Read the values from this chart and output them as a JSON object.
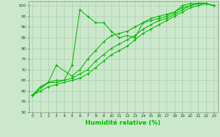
{
  "title": "",
  "xlabel": "Humidité relative (%)",
  "ylabel": "",
  "background_color": "#cce8cc",
  "grid_color": "#aaccaa",
  "line_color": "#00bb00",
  "xlim": [
    -0.5,
    23.5
  ],
  "ylim": [
    50,
    102
  ],
  "yticks": [
    50,
    55,
    60,
    65,
    70,
    75,
    80,
    85,
    90,
    95,
    100
  ],
  "xticks": [
    0,
    1,
    2,
    3,
    4,
    5,
    6,
    7,
    8,
    9,
    10,
    11,
    12,
    13,
    14,
    15,
    16,
    17,
    18,
    19,
    20,
    21,
    22,
    23
  ],
  "series": [
    {
      "x": [
        0,
        1,
        2,
        3,
        4,
        5,
        6,
        7,
        8,
        9,
        10,
        11,
        12,
        13,
        14,
        15,
        16,
        17,
        18,
        19,
        20,
        21,
        22,
        23
      ],
      "y": [
        58,
        62,
        64,
        65,
        65,
        72,
        98,
        95,
        92,
        92,
        88,
        85,
        86,
        85,
        92,
        93,
        94,
        95,
        97,
        100,
        101,
        101,
        101,
        100
      ]
    },
    {
      "x": [
        0,
        2,
        3,
        5,
        6,
        7,
        8,
        9,
        10,
        11,
        12,
        13,
        14,
        15,
        16,
        17,
        18,
        19,
        20,
        21,
        22,
        23
      ],
      "y": [
        58,
        64,
        72,
        67,
        70,
        75,
        79,
        83,
        86,
        87,
        88,
        90,
        92,
        94,
        95,
        96,
        97,
        99,
        100,
        101,
        101,
        100
      ]
    },
    {
      "x": [
        0,
        1,
        2,
        3,
        4,
        5,
        6,
        7,
        8,
        9,
        10,
        11,
        12,
        13,
        14,
        15,
        16,
        17,
        18,
        19,
        20,
        21,
        22,
        23
      ],
      "y": [
        58,
        62,
        64,
        64,
        65,
        66,
        68,
        70,
        74,
        77,
        80,
        82,
        84,
        86,
        89,
        91,
        93,
        94,
        96,
        98,
        100,
        101,
        101,
        100
      ]
    },
    {
      "x": [
        0,
        1,
        2,
        3,
        4,
        5,
        6,
        7,
        8,
        9,
        10,
        11,
        12,
        13,
        14,
        15,
        16,
        17,
        18,
        19,
        20,
        21,
        22,
        23
      ],
      "y": [
        58,
        60,
        62,
        63,
        64,
        65,
        66,
        68,
        71,
        74,
        77,
        79,
        81,
        84,
        87,
        89,
        91,
        93,
        95,
        97,
        99,
        100,
        101,
        100
      ]
    }
  ]
}
